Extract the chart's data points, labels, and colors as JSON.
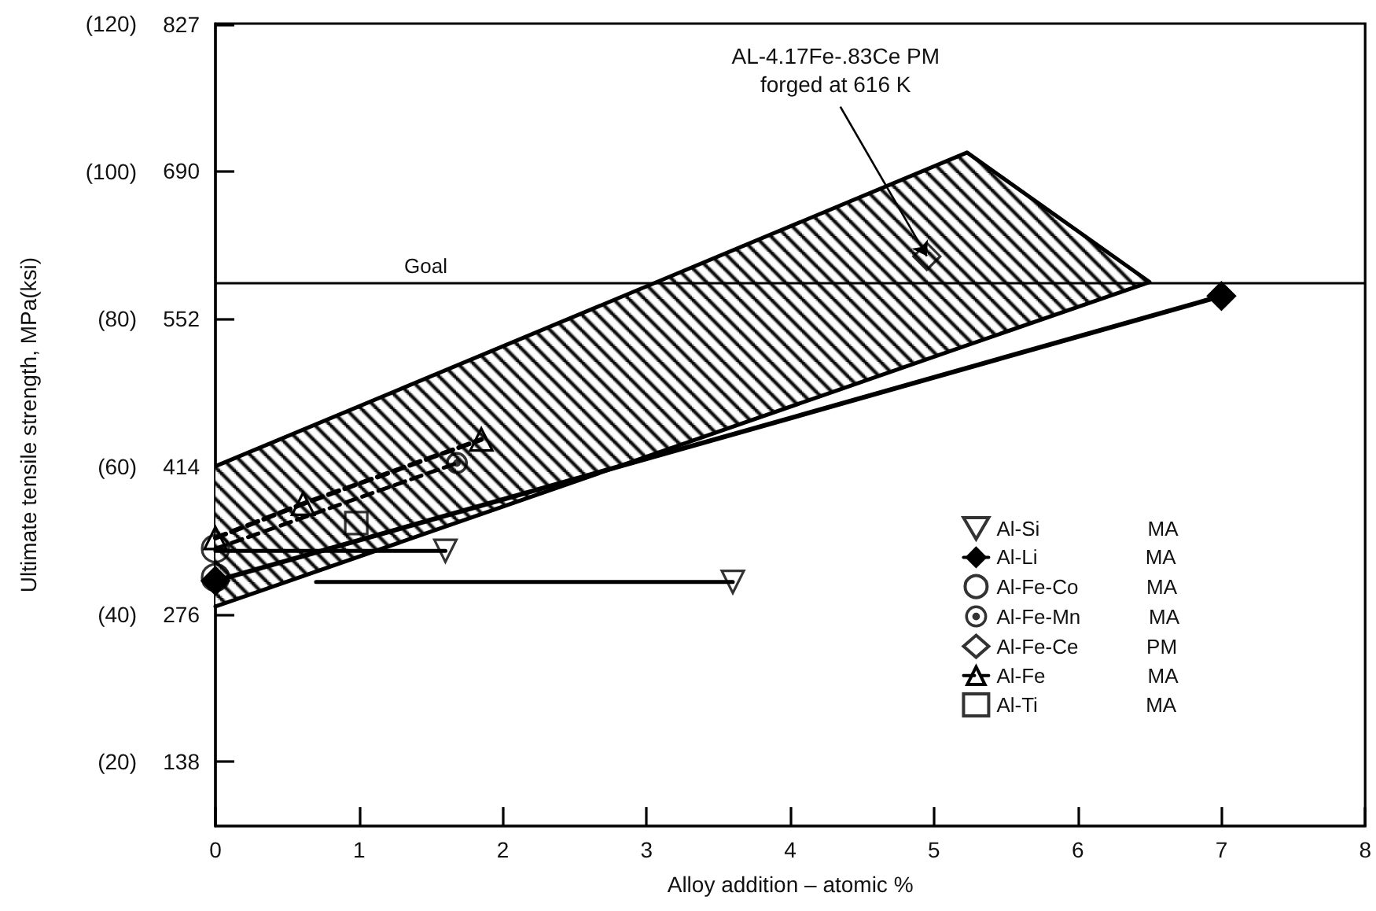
{
  "chart_data": {
    "type": "scatter",
    "xlabel": "Alloy addition – atomic %",
    "ylabel": "Ultimate tensile strength, MPa(ksi)",
    "xlim": [
      0,
      8
    ],
    "xticks": [
      0,
      1,
      2,
      3,
      4,
      5,
      6,
      7,
      8
    ],
    "ylim": [
      11.31,
      120
    ],
    "yticks": [
      {
        "value": 20,
        "label": "(20)"
      },
      {
        "value": 40,
        "label": "(40)"
      },
      {
        "value": 60,
        "label": "(60)"
      },
      {
        "value": 80,
        "label": "(80)"
      },
      {
        "value": 100,
        "label": "(100)"
      },
      {
        "value": 120,
        "label": "(120)"
      }
    ],
    "y2lim": [
      78,
      827.4
    ],
    "y2ticks": [
      138,
      276,
      414,
      552,
      690,
      827
    ],
    "grid": false,
    "legend": "bottom right",
    "ref_lines": [
      {
        "axis": "y2",
        "value": 586,
        "label": "Goal",
        "color": "#000000"
      }
    ],
    "annotations": [
      {
        "text": "AL-4.17Fe-.83Ce PM\nforged at 616 K",
        "x": 4.95,
        "y": 88.5
      }
    ],
    "series": [
      {
        "type": "area",
        "axis": "y2",
        "color": "#000000",
        "x": [
          0,
          5.23,
          6.5
        ],
        "values": [
          414,
          707,
          586
        ]
      },
      {
        "type": "line",
        "axis": "y2",
        "marker": "none",
        "color": "#000000",
        "x": [
          0,
          5.23,
          6.5
        ],
        "values": [
          283,
          527,
          586
        ]
      },
      {
        "name": "Al-Si MA",
        "axis": "y2",
        "marker": "triangle_down",
        "color": "#000000",
        "x": [
          1.6,
          3.6
        ],
        "values": [
          335,
          306
        ]
      },
      {
        "type": "line",
        "axis": "y2",
        "marker": "none",
        "color": "#000000",
        "x": [
          0,
          1.6
        ],
        "values": [
          335,
          335
        ]
      },
      {
        "type": "line",
        "axis": "y2",
        "marker": "none",
        "color": "#000000",
        "x": [
          0.7,
          3.6
        ],
        "values": [
          306,
          306
        ]
      },
      {
        "name": "Al-Li MA",
        "axis": "y2",
        "type": "line",
        "marker": "diamond_filled",
        "color": "#000000",
        "x": [
          0,
          7
        ],
        "values": [
          307,
          573
        ]
      },
      {
        "name": "Al-Fe-Co MA",
        "axis": "y2",
        "marker": "circle",
        "color": "#000000",
        "x": [
          0,
          0
        ],
        "values": [
          337,
          310
        ]
      },
      {
        "name": "Al-Fe-Mn MA",
        "axis": "y2",
        "marker": "circle_dot",
        "color": "#000000",
        "x": [
          1.68
        ],
        "values": [
          417
        ]
      },
      {
        "type": "line",
        "axis": "y2",
        "marker": "none",
        "line_style": "dashed",
        "color": "#000000",
        "x": [
          0,
          1.68
        ],
        "values": [
          337,
          417
        ]
      },
      {
        "name": "Al-Fe-Ce PM",
        "axis": "y2",
        "marker": "diamond",
        "color": "#000000",
        "x": [
          4.95
        ],
        "values": [
          610
        ]
      },
      {
        "name": "Al-Fe MA",
        "axis": "y2",
        "type": "line",
        "marker": "triangle",
        "line_style": "dashed",
        "color": "#000000",
        "x": [
          0,
          0.61,
          1.85
        ],
        "values": [
          347,
          379,
          439
        ]
      },
      {
        "name": "Al-Ti MA",
        "axis": "y2",
        "marker": "square",
        "color": "#000000",
        "x": [
          0.98
        ],
        "values": [
          361
        ]
      }
    ]
  }
}
